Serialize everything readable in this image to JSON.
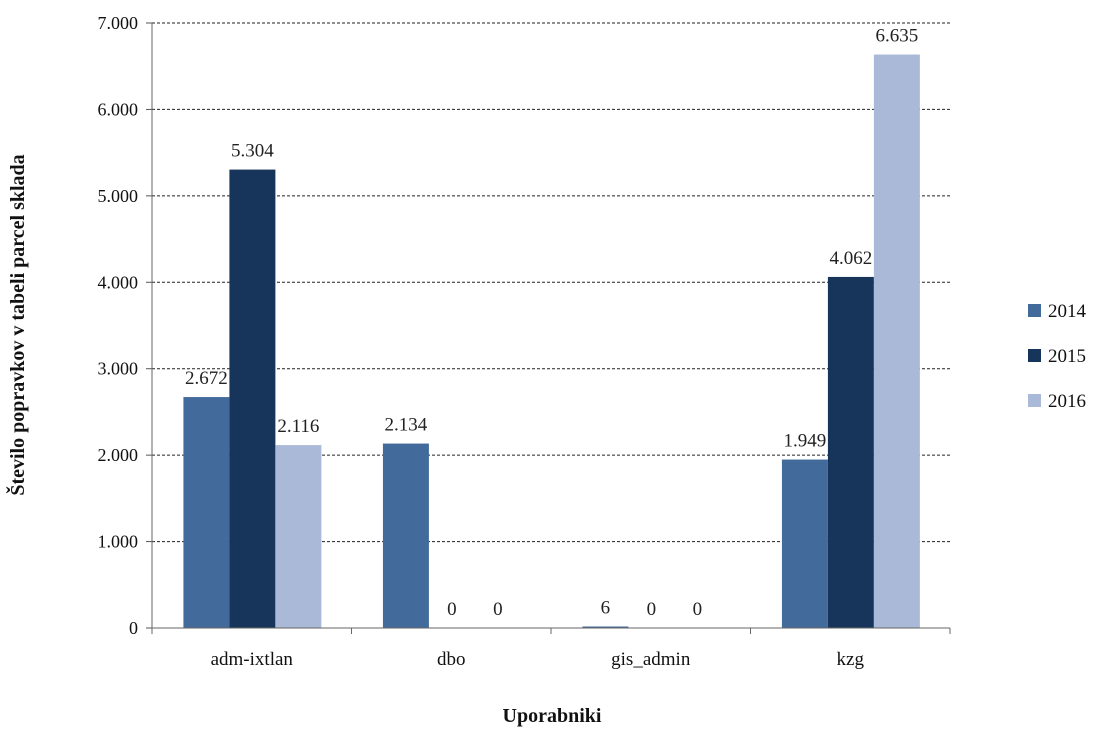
{
  "chart_data": {
    "type": "bar",
    "title": "",
    "xlabel": "Uporabniki",
    "ylabel": "Število popravkov v tabeli parcel sklada",
    "categories": [
      "adm-ixtlan",
      "dbo",
      "gis_admin",
      "kzg"
    ],
    "series": [
      {
        "name": "2014",
        "color": "#426a9a",
        "values": [
          2672,
          2134,
          6,
          1949
        ],
        "labels": [
          "2.672",
          "2.134",
          "6",
          "1.949"
        ]
      },
      {
        "name": "2015",
        "color": "#17355b",
        "values": [
          5304,
          0,
          0,
          4062
        ],
        "labels": [
          "5.304",
          "0",
          "0",
          "4.062"
        ]
      },
      {
        "name": "2016",
        "color": "#aab9d7",
        "values": [
          2116,
          0,
          0,
          6635
        ],
        "labels": [
          "2.116",
          "0",
          "0",
          "6.635"
        ]
      }
    ],
    "ylim": [
      0,
      7000
    ],
    "yticks": [
      0,
      1000,
      2000,
      3000,
      4000,
      5000,
      6000,
      7000
    ],
    "ytick_labels": [
      "0",
      "1.000",
      "2.000",
      "3.000",
      "4.000",
      "5.000",
      "6.000",
      "7.000"
    ],
    "grid": true,
    "grid_style": "dashed",
    "legend_position": "right"
  }
}
